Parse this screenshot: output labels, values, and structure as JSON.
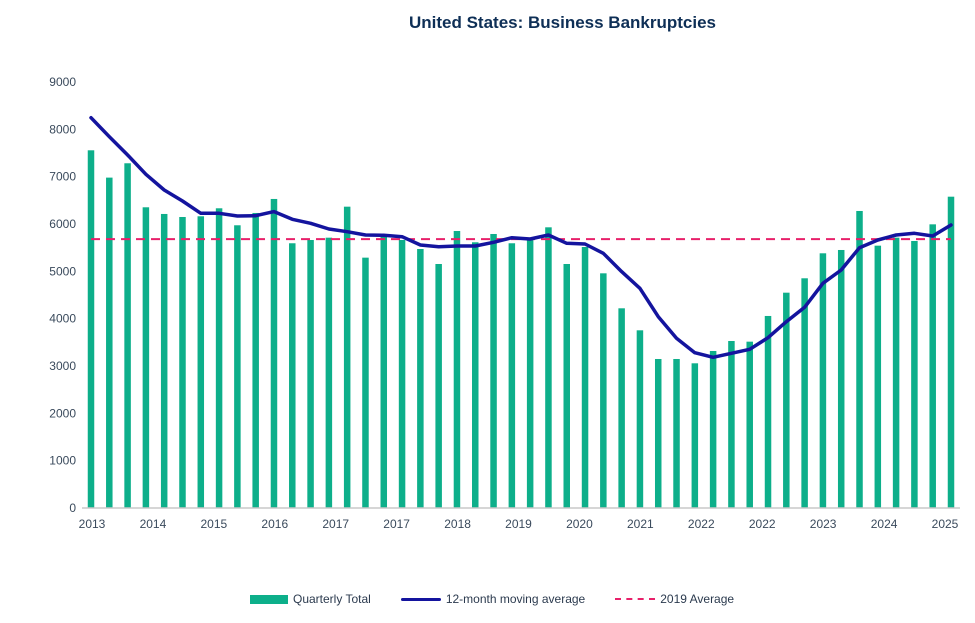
{
  "chart_data": {
    "type": "bar",
    "title": "United States: Business Bankruptcies",
    "xlabel": "",
    "ylabel": "",
    "ylim": [
      0,
      9000
    ],
    "yticks": [
      0,
      1000,
      2000,
      3000,
      4000,
      5000,
      6000,
      7000,
      8000,
      9000
    ],
    "xtick_labels": [
      "2013",
      "2014",
      "2015",
      "2016",
      "2017",
      "2017",
      "2018",
      "2019",
      "2020",
      "2021",
      "2022",
      "2022",
      "2023",
      "2024",
      "2025"
    ],
    "grid": false,
    "legend_position": "bottom",
    "series": [
      {
        "name": "Quarterly Total",
        "type": "bar",
        "color": "#0DAF8A",
        "values": [
          7557,
          6980,
          7283,
          6353,
          6212,
          6148,
          6163,
          6332,
          5973,
          6233,
          6529,
          5593,
          5662,
          5711,
          6366,
          5289,
          5732,
          5662,
          5472,
          5155,
          5852,
          5614,
          5789,
          5593,
          5676,
          5930,
          5155,
          5514,
          4958,
          4219,
          3754,
          3148,
          3148,
          3057,
          3317,
          3528,
          3514,
          4057,
          4549,
          4853,
          5381,
          5451,
          6275,
          5542,
          5711,
          5641,
          5993,
          6577
        ]
      },
      {
        "name": "12-month moving average",
        "type": "line",
        "color": "#14149E",
        "values": [
          8246,
          7845,
          7458,
          7050,
          6719,
          6486,
          6226,
          6226,
          6170,
          6176,
          6261,
          6100,
          6015,
          5895,
          5838,
          5768,
          5761,
          5732,
          5557,
          5521,
          5535,
          5535,
          5614,
          5711,
          5683,
          5768,
          5593,
          5578,
          5381,
          4994,
          4642,
          4043,
          3585,
          3282,
          3184,
          3268,
          3353,
          3598,
          3936,
          4240,
          4747,
          5029,
          5500,
          5662,
          5768,
          5804,
          5747,
          5979
        ]
      },
      {
        "name": "2019 Average",
        "type": "hline",
        "color": "#E8206A",
        "value": 5680
      }
    ]
  }
}
